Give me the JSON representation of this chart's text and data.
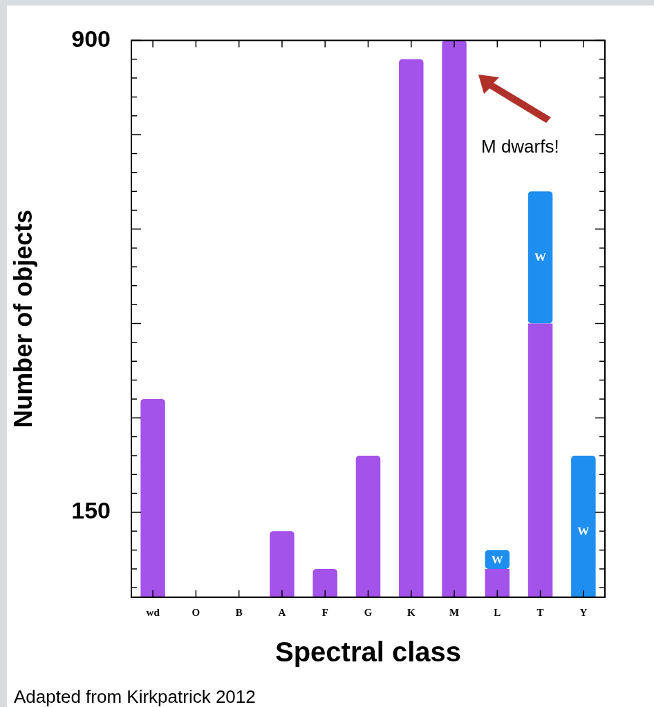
{
  "chart_data": {
    "type": "bar",
    "stacked": true,
    "categories": [
      "wd",
      "O",
      "B",
      "A",
      "F",
      "G",
      "K",
      "M",
      "L",
      "T",
      "Y"
    ],
    "series": [
      {
        "color": "#a352ea",
        "values": [
          330,
          null,
          null,
          120,
          60,
          240,
          870,
          900,
          60,
          450,
          null
        ]
      },
      {
        "name": "W",
        "color": "#1e8ef0",
        "values": [
          null,
          null,
          null,
          null,
          null,
          null,
          null,
          null,
          30,
          210,
          240
        ]
      }
    ],
    "xlabel": "Spectral class",
    "ylabel": "Number of objects",
    "ylim": [
      15,
      900
    ],
    "yticks": [
      {
        "value": 30,
        "label": null
      },
      {
        "value": 60,
        "label": null
      },
      {
        "value": 90,
        "label": null
      },
      {
        "value": 120,
        "label": null
      },
      150,
      {
        "value": 180,
        "label": null
      },
      {
        "value": 210,
        "label": null
      },
      {
        "value": 240,
        "label": null
      },
      {
        "value": 270,
        "label": null
      },
      {
        "value": 300,
        "label": null
      },
      {
        "value": 330,
        "label": null
      },
      {
        "value": 360,
        "label": null
      },
      {
        "value": 390,
        "label": null
      },
      {
        "value": 420,
        "label": null
      },
      {
        "value": 450,
        "label": null
      },
      {
        "value": 480,
        "label": null
      },
      {
        "value": 510,
        "label": null
      },
      {
        "value": 540,
        "label": null
      },
      {
        "value": 570,
        "label": null
      },
      {
        "value": 600,
        "label": null
      },
      {
        "value": 630,
        "label": null
      },
      {
        "value": 660,
        "label": null
      },
      {
        "value": 690,
        "label": null
      },
      {
        "value": 720,
        "label": null
      },
      {
        "value": 750,
        "label": null
      },
      {
        "value": 780,
        "label": null
      },
      {
        "value": 810,
        "label": null
      },
      {
        "value": 840,
        "label": null
      },
      {
        "value": 870,
        "label": null
      },
      900
    ],
    "annotations": [
      "M dwarfs!",
      "Adapted from Kirkpatrick 2012"
    ]
  }
}
